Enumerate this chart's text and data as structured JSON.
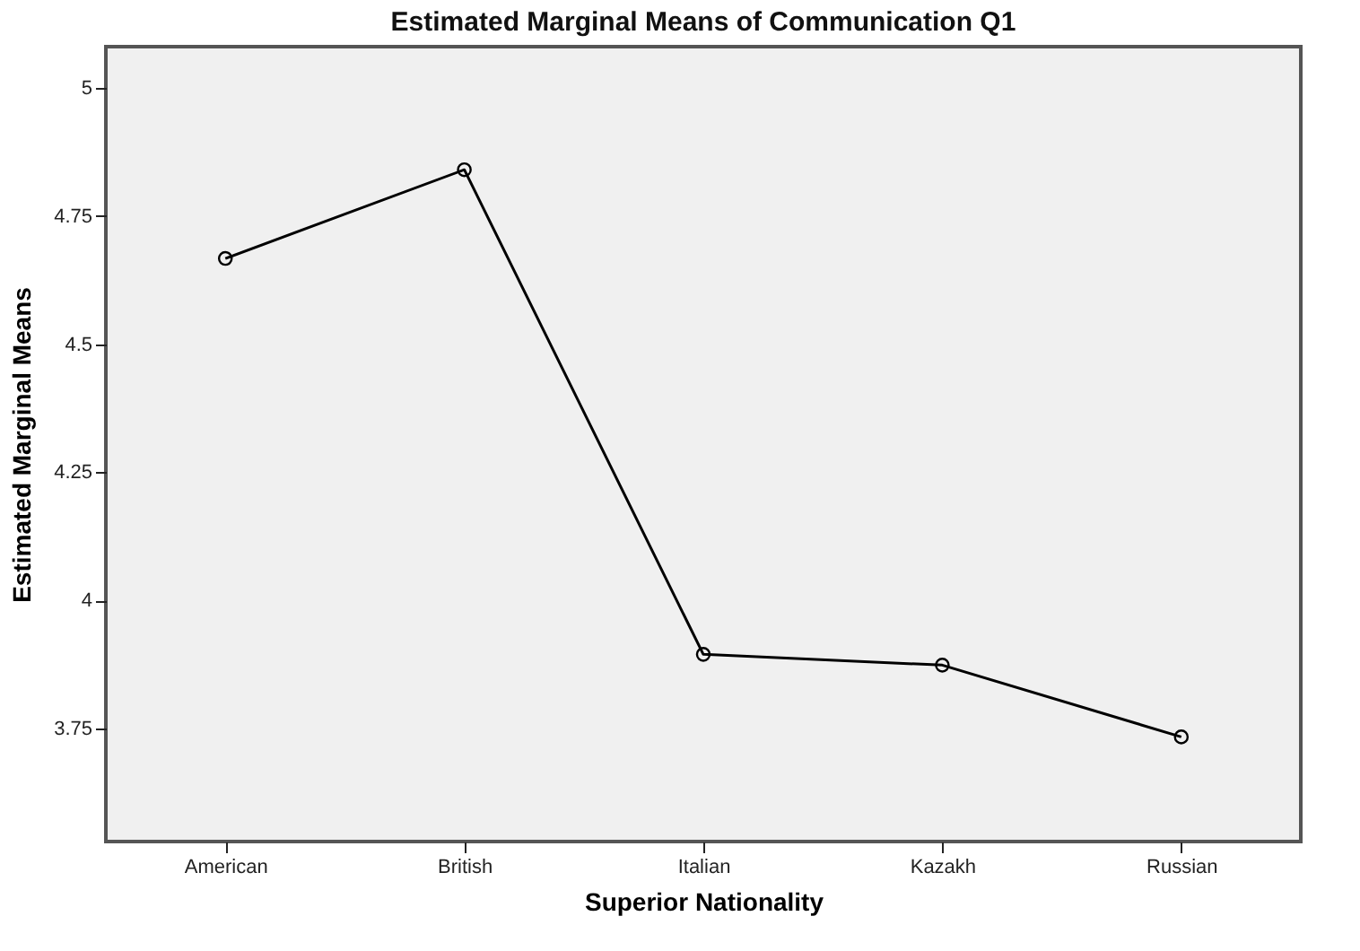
{
  "chart_data": {
    "type": "line",
    "title": "Estimated Marginal Means of Communication Q1",
    "xlabel": "Superior Nationality",
    "ylabel": "Estimated Marginal Means",
    "categories": [
      "American",
      "British",
      "Italian",
      "Kazakh",
      "Russian"
    ],
    "series": [
      {
        "color": "#000000",
        "values": [
          4.667,
          4.84,
          3.895,
          3.874,
          3.734
        ]
      }
    ],
    "ylim": [
      3.53,
      5.08
    ],
    "yticks": [
      3.75,
      4,
      4.25,
      4.5,
      4.75,
      5
    ],
    "grid": false,
    "legend": false,
    "marker": "circle",
    "line_style": "solid"
  }
}
